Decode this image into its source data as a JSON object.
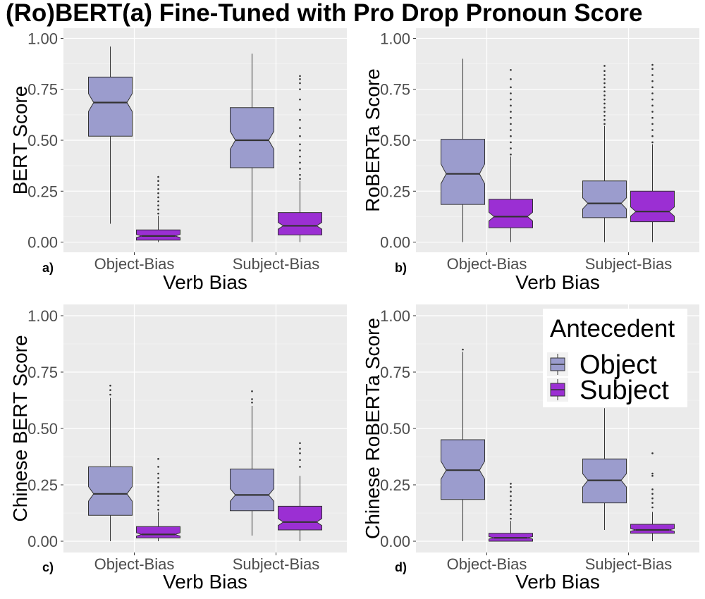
{
  "title": "(Ro)BERT(a) Fine-Tuned with Pro Drop Pronoun Score",
  "colors": {
    "object": "#9b9ccd",
    "subject": "#9b2fd3",
    "panel_bg": "#ebebeb",
    "grid_major": "#ffffff",
    "box_stroke": "#333333"
  },
  "legend": {
    "title": "Antecedent",
    "items": [
      {
        "label": "Object",
        "color": "#9b9ccd"
      },
      {
        "label": "Subject",
        "color": "#9b2fd3"
      }
    ],
    "placement": "inside panel d, top-right"
  },
  "chart_data": [
    {
      "type": "boxplot",
      "panel": "a)",
      "xlabel": "Verb Bias",
      "ylabel": "BERT Score",
      "categories": [
        "Object-Bias",
        "Subject-Bias"
      ],
      "ylim": [
        -0.05,
        1.05
      ],
      "yticks": [
        0.0,
        0.25,
        0.5,
        0.75,
        1.0
      ],
      "ytick_labels": [
        "0.00",
        "0.25",
        "0.50",
        "0.75",
        "1.00"
      ],
      "series": [
        {
          "name": "Object",
          "boxes": [
            {
              "q1": 0.52,
              "median": 0.685,
              "q3": 0.81,
              "whisker_low": 0.09,
              "whisker_high": 0.96,
              "outliers": []
            },
            {
              "q1": 0.365,
              "median": 0.5,
              "q3": 0.66,
              "whisker_low": 0.0,
              "whisker_high": 0.925,
              "outliers": []
            }
          ]
        },
        {
          "name": "Subject",
          "boxes": [
            {
              "q1": 0.01,
              "median": 0.03,
              "q3": 0.06,
              "whisker_low": 0.0,
              "whisker_high": 0.13,
              "outliers": [
                0.14,
                0.16,
                0.18,
                0.2,
                0.22,
                0.24,
                0.26,
                0.28,
                0.3,
                0.32
              ]
            },
            {
              "q1": 0.035,
              "median": 0.08,
              "q3": 0.145,
              "whisker_low": 0.0,
              "whisker_high": 0.3,
              "outliers": [
                0.31,
                0.33,
                0.36,
                0.39,
                0.42,
                0.45,
                0.48,
                0.52,
                0.56,
                0.6,
                0.65,
                0.7,
                0.75,
                0.78,
                0.8,
                0.815
              ]
            }
          ]
        }
      ]
    },
    {
      "type": "boxplot",
      "panel": "b)",
      "xlabel": "Verb Bias",
      "ylabel": "RoBERTa Score",
      "categories": [
        "Object-Bias",
        "Subject-Bias"
      ],
      "ylim": [
        -0.05,
        1.05
      ],
      "yticks": [
        0.0,
        0.25,
        0.5,
        0.75,
        1.0
      ],
      "ytick_labels": [
        "0.00",
        "0.25",
        "0.50",
        "0.75",
        "1.00"
      ],
      "series": [
        {
          "name": "Object",
          "boxes": [
            {
              "q1": 0.185,
              "median": 0.335,
              "q3": 0.505,
              "whisker_low": 0.0,
              "whisker_high": 0.9,
              "outliers": []
            },
            {
              "q1": 0.12,
              "median": 0.19,
              "q3": 0.3,
              "whisker_low": 0.0,
              "whisker_high": 0.57,
              "outliers": [
                0.58,
                0.6,
                0.62,
                0.64,
                0.66,
                0.68,
                0.7,
                0.72,
                0.74,
                0.76,
                0.78,
                0.8,
                0.82,
                0.84,
                0.865
              ]
            }
          ]
        },
        {
          "name": "Subject",
          "boxes": [
            {
              "q1": 0.07,
              "median": 0.125,
              "q3": 0.21,
              "whisker_low": 0.0,
              "whisker_high": 0.42,
              "outliers": [
                0.43,
                0.46,
                0.49,
                0.52,
                0.55,
                0.58,
                0.61,
                0.64,
                0.67,
                0.7,
                0.73,
                0.76,
                0.8,
                0.845
              ]
            },
            {
              "q1": 0.1,
              "median": 0.15,
              "q3": 0.25,
              "whisker_low": 0.0,
              "whisker_high": 0.48,
              "outliers": [
                0.49,
                0.52,
                0.55,
                0.58,
                0.61,
                0.64,
                0.67,
                0.7,
                0.73,
                0.76,
                0.79,
                0.82,
                0.85,
                0.87
              ]
            }
          ]
        }
      ]
    },
    {
      "type": "boxplot",
      "panel": "c)",
      "xlabel": "Verb Bias",
      "ylabel": "Chinese BERT Score",
      "categories": [
        "Object-Bias",
        "Subject-Bias"
      ],
      "ylim": [
        -0.05,
        1.05
      ],
      "yticks": [
        0.0,
        0.25,
        0.5,
        0.75,
        1.0
      ],
      "ytick_labels": [
        "0.00",
        "0.25",
        "0.50",
        "0.75",
        "1.00"
      ],
      "series": [
        {
          "name": "Object",
          "boxes": [
            {
              "q1": 0.115,
              "median": 0.21,
              "q3": 0.33,
              "whisker_low": 0.0,
              "whisker_high": 0.635,
              "outliers": [
                0.65,
                0.67,
                0.69
              ]
            },
            {
              "q1": 0.135,
              "median": 0.205,
              "q3": 0.32,
              "whisker_low": 0.025,
              "whisker_high": 0.6,
              "outliers": [
                0.615,
                0.63,
                0.665
              ]
            }
          ]
        },
        {
          "name": "Subject",
          "boxes": [
            {
              "q1": 0.015,
              "median": 0.03,
              "q3": 0.065,
              "whisker_low": 0.0,
              "whisker_high": 0.13,
              "outliers": [
                0.14,
                0.16,
                0.18,
                0.2,
                0.22,
                0.24,
                0.26,
                0.28,
                0.3,
                0.33,
                0.365
              ]
            },
            {
              "q1": 0.05,
              "median": 0.085,
              "q3": 0.155,
              "whisker_low": 0.0,
              "whisker_high": 0.29,
              "outliers": [
                0.33,
                0.36,
                0.39,
                0.41,
                0.435
              ]
            }
          ]
        }
      ]
    },
    {
      "type": "boxplot",
      "panel": "d)",
      "xlabel": "Verb Bias",
      "ylabel": "Chinese RoBERTa Score",
      "categories": [
        "Object-Bias",
        "Subject-Bias"
      ],
      "ylim": [
        -0.05,
        1.05
      ],
      "yticks": [
        0.0,
        0.25,
        0.5,
        0.75,
        1.0
      ],
      "ytick_labels": [
        "0.00",
        "0.25",
        "0.50",
        "0.75",
        "1.00"
      ],
      "series": [
        {
          "name": "Object",
          "boxes": [
            {
              "q1": 0.185,
              "median": 0.315,
              "q3": 0.45,
              "whisker_low": 0.0,
              "whisker_high": 0.84,
              "outliers": [
                0.85
              ]
            },
            {
              "q1": 0.17,
              "median": 0.27,
              "q3": 0.365,
              "whisker_low": 0.05,
              "whisker_high": 0.59,
              "outliers": []
            }
          ]
        },
        {
          "name": "Subject",
          "boxes": [
            {
              "q1": 0.0,
              "median": 0.015,
              "q3": 0.035,
              "whisker_low": 0.0,
              "whisker_high": 0.09,
              "outliers": [
                0.1,
                0.12,
                0.14,
                0.16,
                0.18,
                0.2,
                0.22,
                0.24,
                0.255
              ]
            },
            {
              "q1": 0.035,
              "median": 0.05,
              "q3": 0.075,
              "whisker_low": 0.0,
              "whisker_high": 0.13,
              "outliers": [
                0.15,
                0.17,
                0.19,
                0.21,
                0.23,
                0.29,
                0.3,
                0.39
              ]
            }
          ]
        }
      ]
    }
  ]
}
